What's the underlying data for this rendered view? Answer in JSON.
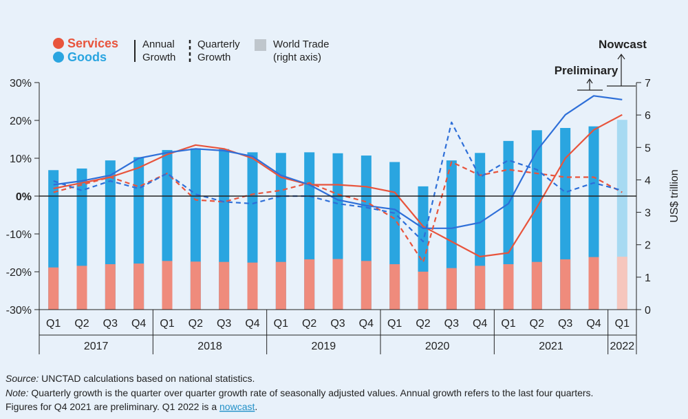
{
  "chart_data": {
    "type": "bar",
    "title": "",
    "legend": {
      "services": "Services",
      "goods": "Goods",
      "annual_l1": "Annual",
      "annual_l2": "Growth",
      "quarterly_l1": "Quarterly",
      "quarterly_l2": "Growth",
      "trade_l1": "World Trade",
      "trade_l2": "(right axis)"
    },
    "annotations": {
      "nowcast": "Nowcast",
      "preliminary": "Preliminary"
    },
    "quarters": [
      "Q1",
      "Q2",
      "Q3",
      "Q4",
      "Q1",
      "Q2",
      "Q3",
      "Q4",
      "Q1",
      "Q2",
      "Q3",
      "Q4",
      "Q1",
      "Q2",
      "Q3",
      "Q4",
      "Q1",
      "Q2",
      "Q3",
      "Q4",
      "Q1"
    ],
    "years": [
      {
        "label": "2017",
        "quarters": 4
      },
      {
        "label": "2018",
        "quarters": 4
      },
      {
        "label": "2019",
        "quarters": 4
      },
      {
        "label": "2020",
        "quarters": 4
      },
      {
        "label": "2021",
        "quarters": 4
      },
      {
        "label": "2022",
        "quarters": 1
      }
    ],
    "left_axis": {
      "ylim": [
        -30,
        30
      ],
      "ticks": [
        "-30%",
        "-20%",
        "-10%",
        "0%",
        "10%",
        "20%",
        "30%"
      ],
      "tick_values": [
        -30,
        -20,
        -10,
        0,
        10,
        20,
        30
      ]
    },
    "right_axis": {
      "label": "US$ trillion",
      "ylim": [
        0,
        7
      ],
      "ticks": [
        "0",
        "1",
        "2",
        "3",
        "4",
        "5",
        "6",
        "7"
      ],
      "tick_values": [
        0,
        1,
        2,
        3,
        4,
        5,
        6,
        7
      ]
    },
    "series": [
      {
        "name": "Goods world trade (right axis)",
        "kind": "bar",
        "color": "#2aa5e0",
        "nowcast_color": "#a7daf2",
        "values": [
          4.3,
          4.35,
          4.6,
          4.7,
          4.92,
          4.97,
          4.95,
          4.85,
          4.83,
          4.85,
          4.82,
          4.75,
          4.55,
          3.8,
          4.6,
          4.83,
          5.2,
          5.53,
          5.6,
          5.65,
          5.85
        ]
      },
      {
        "name": "Services world trade (right axis)",
        "kind": "bar",
        "color": "#ef8b7c",
        "nowcast_color": "#f6c6bd",
        "values": [
          1.3,
          1.35,
          1.4,
          1.42,
          1.5,
          1.48,
          1.47,
          1.45,
          1.47,
          1.55,
          1.56,
          1.5,
          1.4,
          1.17,
          1.28,
          1.35,
          1.4,
          1.47,
          1.55,
          1.62,
          1.63
        ]
      },
      {
        "name": "Services annual growth",
        "kind": "line",
        "dash": false,
        "color": "#e8543c",
        "values": [
          2,
          3.5,
          5,
          7.5,
          11,
          13.5,
          12.5,
          10,
          5,
          3,
          3,
          2.5,
          1,
          -8,
          -12,
          -16,
          -15,
          -3,
          10,
          17.5,
          21.5
        ]
      },
      {
        "name": "Goods annual growth",
        "kind": "line",
        "dash": false,
        "color": "#2e6fd8",
        "values": [
          3,
          4,
          5.5,
          10,
          11.5,
          12.5,
          12,
          10.5,
          5.5,
          3,
          -1,
          -2.5,
          -3.5,
          -8.5,
          -8.5,
          -7,
          -2,
          12,
          21.5,
          26.5,
          25.5
        ]
      },
      {
        "name": "Services quarterly growth",
        "kind": "line",
        "dash": true,
        "color": "#e8543c",
        "values": [
          1,
          3,
          5,
          2.5,
          6,
          -1,
          -1.5,
          0.5,
          1.5,
          3.5,
          0.5,
          -1.5,
          -6,
          -17.5,
          9,
          5.5,
          7,
          6,
          5,
          5,
          1
        ]
      },
      {
        "name": "Goods quarterly growth",
        "kind": "line",
        "dash": true,
        "color": "#2e6fd8",
        "values": [
          4,
          1.5,
          4,
          2,
          6,
          0.5,
          -1.5,
          -2,
          0,
          0,
          -2,
          -3,
          -4.5,
          -12,
          19.5,
          5,
          9.5,
          7,
          1,
          3.5,
          1.5
        ]
      }
    ]
  },
  "footer": {
    "source_label": "Source:",
    "source_text": " UNCTAD calculations based on national statistics.",
    "note_label": "Note:",
    "note_text": " Quarterly growth is the quarter over quarter growth rate of seasonally adjusted values. Annual growth refers to the last four quarters.",
    "note_text2": "Figures for Q4 2021 are preliminary. Q1 2022 is a ",
    "nowcast_link": "nowcast",
    "note_end": "."
  }
}
